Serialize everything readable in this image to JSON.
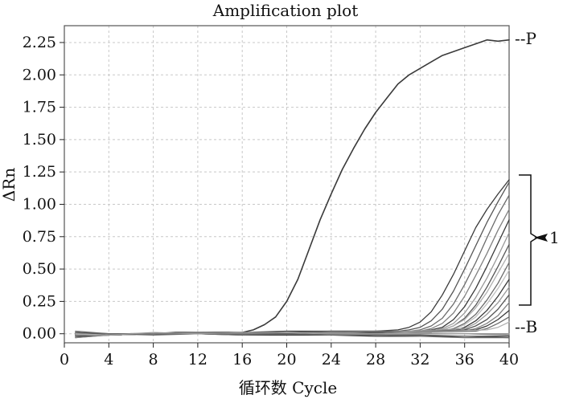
{
  "chart_data": {
    "type": "line",
    "title": "Amplification plot",
    "xlabel": "循环数 Cycle",
    "ylabel": "ΔRn",
    "xlim": [
      0,
      40
    ],
    "ylim": [
      -0.07,
      2.38
    ],
    "xticks": [
      0,
      4,
      8,
      12,
      16,
      20,
      24,
      28,
      32,
      36,
      40
    ],
    "yticks": [
      0.0,
      0.25,
      0.5,
      0.75,
      1.0,
      1.25,
      1.5,
      1.75,
      2.0,
      2.25
    ],
    "grid": true,
    "legend": "none",
    "annotations": {
      "positive": "--P",
      "group": "1",
      "blank": "--B"
    },
    "series": [
      {
        "group": "P",
        "color": "#3a3a3a",
        "x": [
          1,
          2,
          4,
          6,
          8,
          10,
          12,
          14,
          16,
          17,
          18,
          19,
          20,
          21,
          22,
          23,
          24,
          25,
          26,
          27,
          28,
          29,
          30,
          31,
          32,
          33,
          34,
          35,
          36,
          37,
          38,
          39,
          40
        ],
        "values": [
          0.0,
          -0.01,
          -0.01,
          0.0,
          0.0,
          0.01,
          0.01,
          0.01,
          0.01,
          0.03,
          0.07,
          0.13,
          0.25,
          0.42,
          0.65,
          0.88,
          1.08,
          1.27,
          1.43,
          1.58,
          1.71,
          1.82,
          1.93,
          2.0,
          2.05,
          2.1,
          2.15,
          2.18,
          2.21,
          2.24,
          2.27,
          2.26,
          2.27
        ]
      },
      {
        "group": "1",
        "color": "#3a3a3a",
        "x": [
          1,
          4,
          8,
          12,
          16,
          20,
          24,
          28,
          30,
          31,
          32,
          33,
          34,
          35,
          36,
          37,
          38,
          39,
          40
        ],
        "values": [
          -0.02,
          -0.01,
          0.0,
          0.01,
          0.01,
          0.02,
          0.02,
          0.02,
          0.03,
          0.05,
          0.09,
          0.17,
          0.3,
          0.46,
          0.64,
          0.82,
          0.96,
          1.08,
          1.19
        ]
      },
      {
        "group": "1",
        "color": "#555555",
        "x": [
          1,
          4,
          8,
          12,
          16,
          20,
          24,
          28,
          30,
          31,
          32,
          33,
          34,
          35,
          36,
          37,
          38,
          39,
          40
        ],
        "values": [
          -0.01,
          -0.01,
          0.0,
          0.0,
          0.01,
          0.01,
          0.02,
          0.02,
          0.02,
          0.03,
          0.05,
          0.1,
          0.19,
          0.33,
          0.5,
          0.68,
          0.86,
          1.02,
          1.17
        ]
      },
      {
        "group": "1",
        "color": "#6a6a6a",
        "x": [
          1,
          4,
          8,
          12,
          16,
          20,
          24,
          28,
          31,
          32,
          33,
          34,
          35,
          36,
          37,
          38,
          39,
          40
        ],
        "values": [
          0.0,
          -0.01,
          0.0,
          0.0,
          0.01,
          0.01,
          0.01,
          0.02,
          0.02,
          0.03,
          0.06,
          0.12,
          0.23,
          0.38,
          0.55,
          0.74,
          0.92,
          1.07
        ]
      },
      {
        "group": "1",
        "color": "#808080",
        "x": [
          1,
          4,
          8,
          12,
          16,
          20,
          24,
          28,
          32,
          33,
          34,
          35,
          36,
          37,
          38,
          39,
          40
        ],
        "values": [
          -0.03,
          -0.01,
          0.0,
          0.0,
          0.01,
          0.01,
          0.01,
          0.01,
          0.02,
          0.04,
          0.08,
          0.16,
          0.29,
          0.45,
          0.62,
          0.8,
          0.96
        ]
      },
      {
        "group": "1",
        "color": "#3a3a3a",
        "x": [
          1,
          4,
          8,
          12,
          16,
          20,
          24,
          28,
          32,
          33,
          34,
          35,
          36,
          37,
          38,
          39,
          40
        ],
        "values": [
          0.01,
          -0.01,
          0.0,
          0.0,
          0.0,
          0.01,
          0.01,
          0.01,
          0.02,
          0.03,
          0.05,
          0.11,
          0.21,
          0.35,
          0.52,
          0.7,
          0.88
        ]
      },
      {
        "group": "1",
        "color": "#999999",
        "x": [
          1,
          4,
          8,
          12,
          16,
          20,
          24,
          28,
          33,
          34,
          35,
          36,
          37,
          38,
          39,
          40
        ],
        "values": [
          -0.02,
          -0.01,
          0.0,
          0.0,
          0.0,
          0.01,
          0.01,
          0.01,
          0.02,
          0.04,
          0.08,
          0.16,
          0.28,
          0.43,
          0.6,
          0.78
        ]
      },
      {
        "group": "1",
        "color": "#555555",
        "x": [
          1,
          4,
          8,
          12,
          16,
          20,
          24,
          28,
          33,
          34,
          35,
          36,
          37,
          38,
          39,
          40
        ],
        "values": [
          0.0,
          -0.01,
          0.0,
          0.0,
          0.0,
          0.0,
          0.01,
          0.01,
          0.01,
          0.03,
          0.06,
          0.12,
          0.22,
          0.36,
          0.52,
          0.69
        ]
      },
      {
        "group": "1",
        "color": "#b0b0b0",
        "x": [
          1,
          4,
          8,
          12,
          16,
          20,
          24,
          28,
          34,
          35,
          36,
          37,
          38,
          39,
          40
        ],
        "values": [
          -0.01,
          -0.01,
          0.0,
          0.0,
          0.0,
          0.0,
          0.01,
          0.01,
          0.03,
          0.06,
          0.11,
          0.2,
          0.32,
          0.47,
          0.62
        ]
      },
      {
        "group": "1",
        "color": "#6a6a6a",
        "x": [
          1,
          4,
          8,
          12,
          16,
          20,
          24,
          28,
          34,
          35,
          36,
          37,
          38,
          39,
          40
        ],
        "values": [
          0.01,
          -0.01,
          0.0,
          0.0,
          0.0,
          0.0,
          0.0,
          0.01,
          0.02,
          0.04,
          0.08,
          0.15,
          0.26,
          0.39,
          0.55
        ]
      },
      {
        "group": "1",
        "color": "#c0c0c0",
        "x": [
          1,
          4,
          8,
          12,
          16,
          20,
          24,
          28,
          35,
          36,
          37,
          38,
          39,
          40
        ],
        "values": [
          -0.02,
          -0.01,
          0.0,
          0.0,
          0.0,
          0.0,
          0.0,
          0.01,
          0.03,
          0.07,
          0.13,
          0.23,
          0.35,
          0.49
        ]
      },
      {
        "group": "1",
        "color": "#3a3a3a",
        "x": [
          1,
          4,
          8,
          12,
          16,
          20,
          24,
          28,
          35,
          36,
          37,
          38,
          39,
          40
        ],
        "values": [
          0.0,
          -0.01,
          0.0,
          0.0,
          0.0,
          0.0,
          0.0,
          0.01,
          0.02,
          0.05,
          0.1,
          0.18,
          0.29,
          0.42
        ]
      },
      {
        "group": "1",
        "color": "#999999",
        "x": [
          1,
          4,
          8,
          12,
          16,
          20,
          24,
          28,
          36,
          37,
          38,
          39,
          40
        ],
        "values": [
          -0.01,
          -0.01,
          0.0,
          0.0,
          0.0,
          0.0,
          0.0,
          0.0,
          0.04,
          0.08,
          0.15,
          0.24,
          0.36
        ]
      },
      {
        "group": "1",
        "color": "#555555",
        "x": [
          1,
          4,
          8,
          12,
          16,
          20,
          24,
          28,
          36,
          37,
          38,
          39,
          40
        ],
        "values": [
          0.0,
          -0.01,
          0.0,
          0.0,
          0.0,
          0.0,
          0.0,
          0.0,
          0.03,
          0.06,
          0.11,
          0.19,
          0.3
        ]
      },
      {
        "group": "1",
        "color": "#808080",
        "x": [
          1,
          4,
          8,
          12,
          16,
          20,
          24,
          28,
          36,
          37,
          38,
          39,
          40
        ],
        "values": [
          -0.02,
          -0.01,
          0.0,
          0.0,
          0.0,
          0.0,
          0.0,
          0.0,
          0.02,
          0.04,
          0.08,
          0.14,
          0.24
        ]
      },
      {
        "group": "1",
        "color": "#3a3a3a",
        "x": [
          1,
          4,
          8,
          12,
          16,
          20,
          24,
          28,
          37,
          38,
          39,
          40
        ],
        "values": [
          0.0,
          -0.01,
          0.0,
          0.0,
          0.0,
          0.0,
          0.0,
          0.0,
          0.03,
          0.06,
          0.11,
          0.18
        ]
      },
      {
        "group": "1",
        "color": "#6a6a6a",
        "x": [
          1,
          4,
          8,
          12,
          16,
          20,
          24,
          28,
          37,
          38,
          39,
          40
        ],
        "values": [
          -0.01,
          -0.01,
          0.0,
          0.0,
          0.0,
          0.0,
          0.0,
          0.0,
          0.02,
          0.04,
          0.08,
          0.13
        ]
      },
      {
        "group": "1",
        "color": "#b0b0b0",
        "x": [
          1,
          4,
          8,
          12,
          16,
          20,
          24,
          28,
          38,
          39,
          40
        ],
        "values": [
          0.0,
          -0.01,
          0.0,
          0.0,
          0.0,
          0.0,
          0.0,
          0.0,
          0.03,
          0.05,
          0.09
        ]
      },
      {
        "group": "B",
        "color": "#3a3a3a",
        "x": [
          1,
          4,
          8,
          12,
          16,
          20,
          24,
          28,
          32,
          36,
          40
        ],
        "values": [
          -0.02,
          -0.01,
          0.0,
          0.0,
          -0.01,
          -0.01,
          -0.01,
          -0.02,
          -0.02,
          -0.02,
          -0.02
        ]
      },
      {
        "group": "B",
        "color": "#555555",
        "x": [
          1,
          4,
          8,
          12,
          16,
          20,
          24,
          28,
          32,
          36,
          40
        ],
        "values": [
          0.01,
          0.0,
          0.0,
          0.0,
          0.0,
          0.0,
          -0.01,
          -0.01,
          -0.01,
          -0.02,
          -0.03
        ]
      },
      {
        "group": "B",
        "color": "#808080",
        "x": [
          1,
          4,
          8,
          12,
          16,
          20,
          24,
          28,
          32,
          36,
          40
        ],
        "values": [
          -0.03,
          -0.01,
          0.0,
          0.01,
          0.0,
          0.01,
          0.01,
          0.0,
          0.0,
          0.0,
          -0.01
        ]
      },
      {
        "group": "B",
        "color": "#6a6a6a",
        "x": [
          1,
          4,
          8,
          12,
          16,
          20,
          24,
          28,
          32,
          36,
          40
        ],
        "values": [
          0.02,
          0.0,
          -0.01,
          0.0,
          -0.01,
          0.0,
          -0.01,
          -0.01,
          -0.02,
          -0.03,
          -0.03
        ]
      },
      {
        "group": "B",
        "color": "#999999",
        "x": [
          1,
          4,
          8,
          12,
          16,
          20,
          24,
          28,
          32,
          36,
          40
        ],
        "values": [
          -0.01,
          -0.01,
          0.01,
          0.0,
          0.01,
          0.01,
          0.0,
          0.0,
          0.0,
          0.0,
          0.0
        ]
      }
    ]
  }
}
